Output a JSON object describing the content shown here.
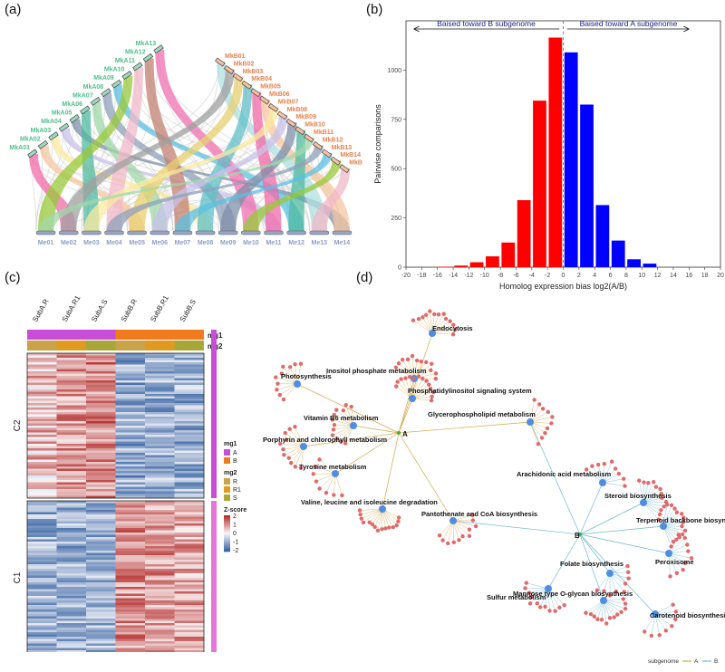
{
  "panel_labels": {
    "a": "(a)",
    "b": "(b)",
    "c": "(c)",
    "d": "(d)"
  },
  "synteny": {
    "top_left_chromosomes": [
      "MkA01",
      "MkA02",
      "MkA03",
      "MkA04",
      "MkA05",
      "MkA06",
      "MkA07",
      "MkA08",
      "MkA09",
      "MkA10",
      "MkA11",
      "MkA12",
      "MkA13"
    ],
    "top_right_chromosomes": [
      "MkB01",
      "MkB02",
      "MkB03",
      "MkB04",
      "MkB05",
      "MkB06",
      "MkB07",
      "MkB08",
      "MkB09",
      "MkB10",
      "MkB11",
      "MkB12",
      "MkB13",
      "MkB14",
      "MkB15"
    ],
    "bottom_chromosomes": [
      "Me01",
      "Me02",
      "Me03",
      "Me04",
      "Me05",
      "Me06",
      "Me07",
      "Me08",
      "Me09",
      "Me10",
      "Me11",
      "Me12",
      "Me13",
      "Me14"
    ],
    "colors": {
      "A_label": "#4fbf8f",
      "B_label": "#e8834f",
      "Me_label": "#8f9ec8"
    }
  },
  "chart_data": {
    "type": "bar",
    "title": "",
    "xlabel": "Homolog expression bias log2(A/B)",
    "ylabel": "Pairwise comparisons",
    "xlim": [
      -20,
      20
    ],
    "ylim": [
      0,
      1250
    ],
    "xticks": [
      -20,
      -18,
      -16,
      -14,
      -12,
      -10,
      -8,
      -6,
      -4,
      -2,
      0,
      2,
      4,
      6,
      8,
      10,
      12,
      14,
      16,
      18,
      20
    ],
    "yticks": [
      0,
      250,
      500,
      750,
      1000
    ],
    "annotations": [
      "Baised toward B subgenome",
      "Baised toward A subgenome"
    ],
    "series": [
      {
        "color": "#ff0000",
        "x": [
          -15,
          -13,
          -11,
          -9,
          -7,
          -5,
          -3,
          -1
        ],
        "values": [
          2,
          8,
          25,
          55,
          125,
          340,
          845,
          1165
        ]
      },
      {
        "color": "#0000ff",
        "x": [
          1,
          3,
          5,
          7,
          9,
          11
        ],
        "values": [
          1090,
          825,
          315,
          135,
          40,
          18
        ]
      }
    ]
  },
  "heatmap": {
    "columns": [
      "SubA.R",
      "SubA.R1",
      "SubA.S",
      "SubB.R",
      "SubB.R1",
      "SubB.S"
    ],
    "annotation_rows": [
      "mg1",
      "mg2"
    ],
    "cluster_labels": [
      "C2",
      "C1"
    ],
    "legend": {
      "mg1_title": "mg1",
      "mg1_items": [
        "A",
        "B"
      ],
      "mg2_title": "mg2",
      "mg2_items": [
        "R",
        "R1",
        "S"
      ],
      "zscore_title": "Z-score",
      "zscore_ticks": [
        "2",
        "1",
        "0",
        "-1",
        "-2"
      ]
    },
    "colors": {
      "A": "#c84ed8",
      "B": "#f07a1e",
      "R": "#c9a24a",
      "R1": "#e09a20",
      "S": "#a8a83a",
      "cluster_bar": "#e676d8"
    }
  },
  "network": {
    "hubs": [
      "A",
      "B"
    ],
    "pathways": [
      "Endocytosis",
      "Photosynthesis",
      "Inositol phosphate metabolism",
      "Phosphatidylinositol signaling system",
      "Vitamin B6 metabolism",
      "Glycerophospholipid metabolism",
      "Porphyrin and chlorophyll metabolism",
      "Tyrosine metabolism",
      "Valine, leucine and isoleucine degradation",
      "Pantothenate and CoA biosynthesis",
      "Arachidonic acid metabolism",
      "Steroid biosynthesis",
      "Terpenoid backbone biosynthesis",
      "Peroxisome",
      "Folate biosynthesis",
      "Sulfur metabolism",
      "Mannose type O-glycan biosynthesis",
      "Carotenoid biosynthesis"
    ],
    "legend": {
      "title": "subgenome",
      "items": [
        "A",
        "B"
      ]
    },
    "colors": {
      "A_edge": "#d4a84a",
      "B_edge": "#6fb8d0",
      "hub_node": "#4f8de0",
      "leaf_node": "#e06a6a"
    }
  }
}
